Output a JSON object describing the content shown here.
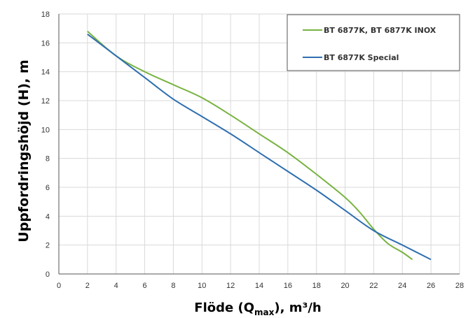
{
  "chart_data": {
    "type": "line",
    "xlabel": {
      "main": "Flöde (Q",
      "sub": "max",
      "tail": "), m³/h"
    },
    "ylabel": "Uppfordringshöjd (H), m",
    "xlim": [
      0,
      28
    ],
    "ylim": [
      0,
      18
    ],
    "xticks": [
      0,
      2,
      4,
      6,
      8,
      10,
      12,
      14,
      16,
      18,
      20,
      22,
      24,
      26,
      28
    ],
    "yticks": [
      0,
      2,
      4,
      6,
      8,
      10,
      12,
      14,
      16,
      18
    ],
    "grid": true,
    "legend_position": "top-right",
    "series": [
      {
        "name": "BT 6877K, BT 6877K INOX",
        "color": "#77b340",
        "x": [
          2,
          4,
          6,
          8,
          10,
          12,
          14,
          16,
          18,
          20,
          21,
          22,
          23,
          24,
          24.7
        ],
        "y": [
          16.8,
          15.1,
          14.0,
          13.1,
          12.2,
          11.0,
          9.7,
          8.4,
          6.9,
          5.3,
          4.3,
          3.1,
          2.1,
          1.5,
          1.0
        ]
      },
      {
        "name": "BT 6877K Special",
        "color": "#2e6fb0",
        "x": [
          2,
          4,
          6,
          8,
          10,
          12,
          14,
          16,
          18,
          20,
          22,
          24,
          26
        ],
        "y": [
          16.6,
          15.1,
          13.6,
          12.1,
          10.9,
          9.7,
          8.4,
          7.1,
          5.8,
          4.4,
          3.0,
          2.0,
          1.0
        ]
      }
    ]
  }
}
